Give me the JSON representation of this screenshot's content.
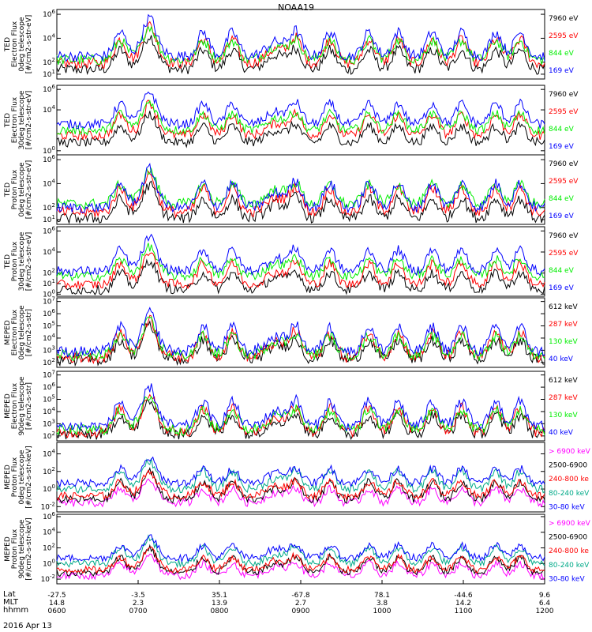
{
  "title": "NOAA19",
  "date": "2016 Apr 13",
  "x_rows": [
    {
      "name": "Lat",
      "values": [
        "-27.5",
        "-3.5",
        "35.1",
        "-67.8",
        "78.1",
        "-44.6",
        "9.6"
      ]
    },
    {
      "name": "MLT",
      "values": [
        "14.8",
        "2.3",
        "13.9",
        "2.7",
        "3.8",
        "14.2",
        "6.4"
      ]
    },
    {
      "name": "hhmm",
      "values": [
        "0600",
        "0700",
        "0800",
        "0900",
        "1000",
        "1100",
        "1200"
      ]
    }
  ],
  "chart_data": [
    {
      "type": "line",
      "panel": "TED Electron Flux 0deg telescope",
      "ylabel": [
        "TED",
        "Electron Flux",
        "0deg telescope",
        "[#/cm2-s-str-eV]"
      ],
      "ylog": true,
      "yticks": [
        1,
        2,
        4,
        6
      ],
      "ylim_log": [
        0.6,
        6.4
      ],
      "series": [
        {
          "name": "7960 eV",
          "color": "#000000",
          "level": 1.4
        },
        {
          "name": "2595 eV",
          "color": "#ff0000",
          "level": 1.9
        },
        {
          "name": "844 eV",
          "color": "#00ee00",
          "level": 2.2
        },
        {
          "name": "169 eV",
          "color": "#0000ff",
          "level": 2.5
        }
      ]
    },
    {
      "type": "line",
      "panel": "TED Electron Flux 30deg telescope",
      "ylabel": [
        "TED",
        "Electron Flux",
        "30deg telescope",
        "[#/cm2-s-str-eV]"
      ],
      "ylog": true,
      "yticks": [
        0,
        4,
        6
      ],
      "ylim_log": [
        -0.4,
        6.4
      ],
      "series": [
        {
          "name": "7960 eV",
          "color": "#000000",
          "level": 0.8
        },
        {
          "name": "2595 eV",
          "color": "#ff0000",
          "level": 1.5
        },
        {
          "name": "844 eV",
          "color": "#00ee00",
          "level": 2.0
        },
        {
          "name": "169 eV",
          "color": "#0000ff",
          "level": 2.6
        }
      ]
    },
    {
      "type": "line",
      "panel": "TED Proton Flux 0deg telescope",
      "ylabel": [
        "TED",
        "Proton Flux",
        "0deg telescope",
        "[#/cm2-s-str-eV]"
      ],
      "ylog": true,
      "yticks": [
        1,
        2,
        4,
        6
      ],
      "ylim_log": [
        0.6,
        6.4
      ],
      "series": [
        {
          "name": "7960 eV",
          "color": "#000000",
          "level": 1.1
        },
        {
          "name": "2595 eV",
          "color": "#ff0000",
          "level": 1.6
        },
        {
          "name": "844 eV",
          "color": "#00ee00",
          "level": 2.3
        },
        {
          "name": "169 eV",
          "color": "#0000ff",
          "level": 2.0
        }
      ]
    },
    {
      "type": "line",
      "panel": "TED Proton Flux 30deg telescope",
      "ylabel": [
        "TED",
        "Proton Flux",
        "30deg telescope",
        "[#/cm2-s-str-eV]"
      ],
      "ylog": true,
      "yticks": [
        0,
        1,
        2,
        4,
        6
      ],
      "ylim_log": [
        -0.2,
        6.4
      ],
      "series": [
        {
          "name": "7960 eV",
          "color": "#000000",
          "level": 0.4
        },
        {
          "name": "2595 eV",
          "color": "#ff0000",
          "level": 0.9
        },
        {
          "name": "844 eV",
          "color": "#00ee00",
          "level": 1.7
        },
        {
          "name": "169 eV",
          "color": "#0000ff",
          "level": 2.2
        }
      ]
    },
    {
      "type": "line",
      "panel": "MEPED Electron Flux 0deg telescope",
      "ylabel": [
        "MEPED",
        "Electron Flux",
        "0deg telescope",
        "[#/cm2-s-str]"
      ],
      "ylog": true,
      "yticks": [
        2,
        3,
        4,
        5,
        6,
        7
      ],
      "ylim_log": [
        1.6,
        7.3
      ],
      "series": [
        {
          "name": "612 keV",
          "color": "#000000",
          "level": 2.2
        },
        {
          "name": "287 keV",
          "color": "#ff0000",
          "level": 2.4
        },
        {
          "name": "130 keV",
          "color": "#00ee00",
          "level": 2.6
        },
        {
          "name": "40 keV",
          "color": "#0000ff",
          "level": 2.9
        }
      ]
    },
    {
      "type": "line",
      "panel": "MEPED Electron Flux 90deg telescope",
      "ylabel": [
        "MEPED",
        "Electron Flux",
        "90deg telescope",
        "[#/cm2-s-str]"
      ],
      "ylog": true,
      "yticks": [
        2,
        3,
        4,
        5,
        6,
        7
      ],
      "ylim_log": [
        1.6,
        7.3
      ],
      "series": [
        {
          "name": "612 keV",
          "color": "#000000",
          "level": 2.1
        },
        {
          "name": "287 keV",
          "color": "#ff0000",
          "level": 2.3
        },
        {
          "name": "130 keV",
          "color": "#00ee00",
          "level": 2.5
        },
        {
          "name": "40 keV",
          "color": "#0000ff",
          "level": 2.8
        }
      ]
    },
    {
      "type": "line",
      "panel": "MEPED Proton Flux 0deg telescope",
      "ylabel": [
        "MEPED",
        "Proton Flux",
        "0deg telescope",
        "[#/cm2-s-str-keV]"
      ],
      "ylog": true,
      "yticks": [
        -2,
        0,
        2,
        4
      ],
      "ylim_log": [
        -2.6,
        5.3
      ],
      "series": [
        {
          "name": "> 6900 keV",
          "color": "#ff00ff",
          "level": -1.6
        },
        {
          "name": "2500-6900",
          "color": "#000000",
          "level": -1.2
        },
        {
          "name": "240-800 ke",
          "color": "#ff0000",
          "level": -0.8
        },
        {
          "name": "80-240 keV",
          "color": "#00aa88",
          "level": 0.0
        },
        {
          "name": "30-80 keV",
          "color": "#0000ff",
          "level": 0.7
        }
      ]
    },
    {
      "type": "line",
      "panel": "MEPED Proton Flux 90deg telescope",
      "ylabel": [
        "MEPED",
        "Proton Flux",
        "90deg telescope",
        "[#/cm2-s-str-keV]"
      ],
      "ylog": true,
      "yticks": [
        -2,
        0,
        2,
        4,
        6
      ],
      "ylim_log": [
        -2.6,
        6.3
      ],
      "series": [
        {
          "name": "> 6900 keV",
          "color": "#ff00ff",
          "level": -1.6
        },
        {
          "name": "2500-6900",
          "color": "#000000",
          "level": -1.2
        },
        {
          "name": "240-800 ke",
          "color": "#ff0000",
          "level": -0.8
        },
        {
          "name": "80-240 keV",
          "color": "#00aa88",
          "level": 0.0
        },
        {
          "name": "30-80 keV",
          "color": "#0000ff",
          "level": 0.7
        }
      ]
    }
  ]
}
